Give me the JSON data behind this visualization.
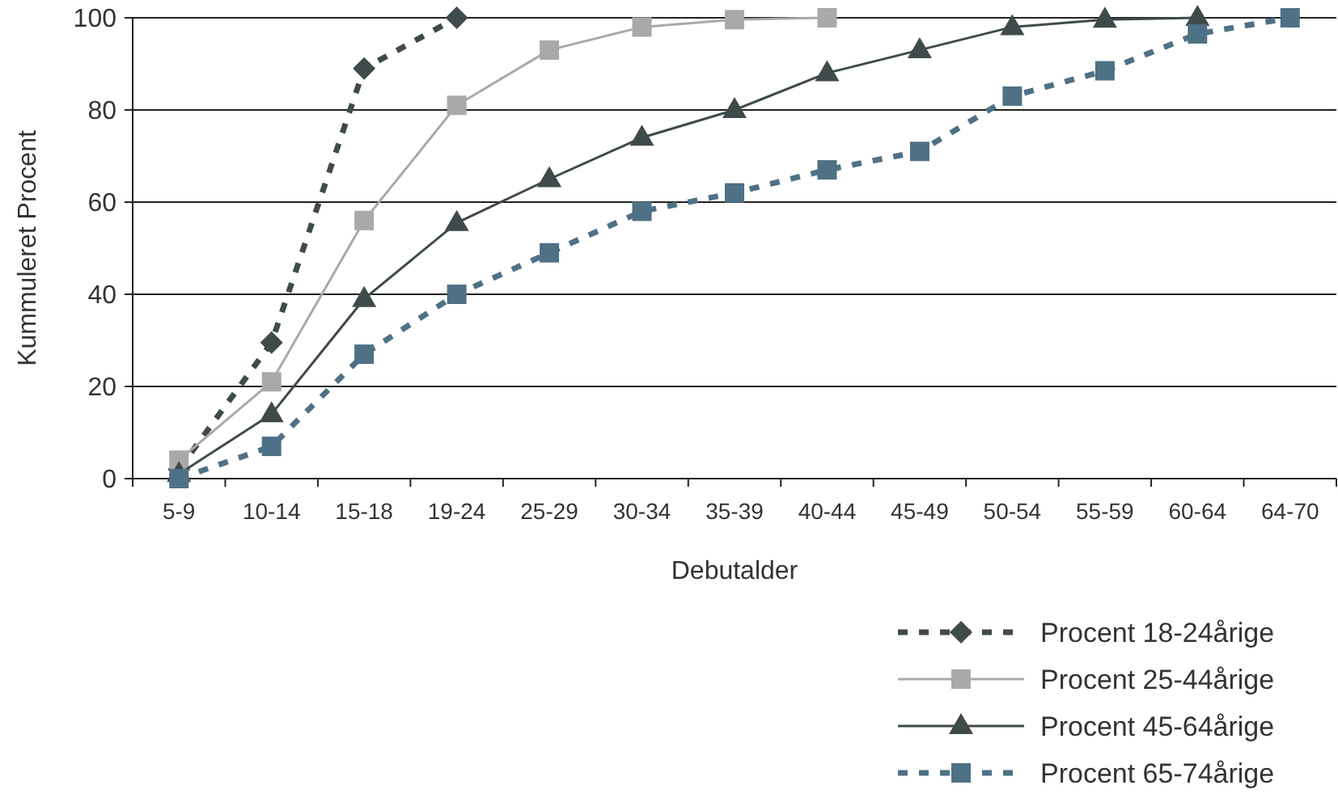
{
  "chart_data": {
    "type": "line",
    "xlabel": "Debutalder",
    "ylabel": "Kummuleret Procent",
    "categories": [
      "5-9",
      "10-14",
      "15-18",
      "19-24",
      "25-29",
      "30-34",
      "35-39",
      "40-44",
      "45-49",
      "50-54",
      "55-59",
      "60-64",
      "64-70"
    ],
    "ylim": [
      0,
      100
    ],
    "yticks": [
      0,
      20,
      40,
      60,
      80,
      100
    ],
    "grid": "y",
    "legend": "bottom right",
    "series": [
      {
        "name": "Procent 18-24årige",
        "color": "#3f4a4a",
        "marker": "diamond",
        "line_style": "dashed",
        "values": [
          2,
          29.5,
          89,
          100,
          null,
          null,
          null,
          null,
          null,
          null,
          null,
          null,
          null
        ]
      },
      {
        "name": "Procent 25-44årige",
        "color": "#a8a9ab",
        "marker": "square",
        "line_style": "solid",
        "values": [
          4,
          21,
          56,
          81,
          93,
          98,
          99.6,
          100,
          null,
          null,
          null,
          null,
          null
        ]
      },
      {
        "name": "Procent 45-64årige",
        "color": "#3f4a4a",
        "marker": "triangle",
        "line_style": "solid",
        "values": [
          1,
          14,
          39,
          55.5,
          65,
          74,
          80,
          88,
          93,
          98,
          99.6,
          100,
          null
        ]
      },
      {
        "name": "Procent 65-74årige",
        "color": "#4e7185",
        "marker": "square",
        "line_style": "dashed",
        "values": [
          0,
          7,
          27,
          40,
          49,
          58,
          62,
          67,
          71,
          83,
          88.5,
          96.5,
          100
        ]
      }
    ]
  }
}
